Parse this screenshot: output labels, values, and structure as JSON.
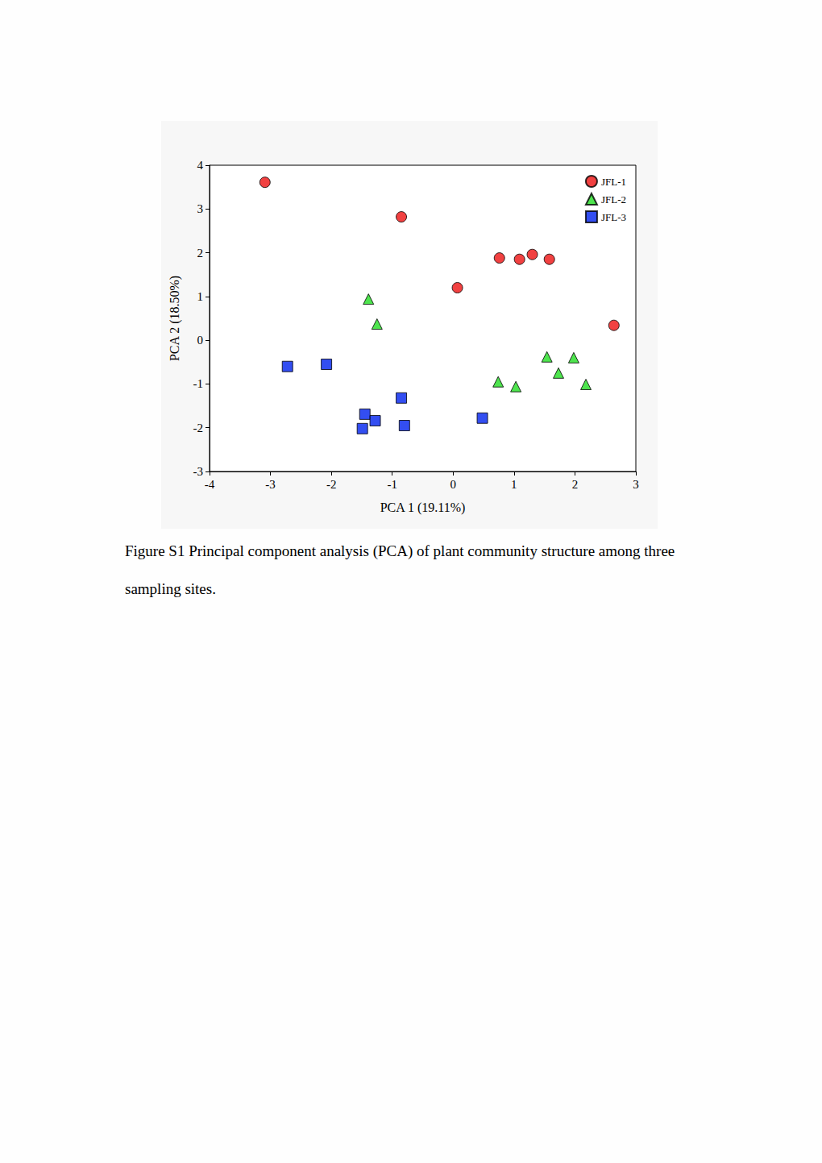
{
  "chart_data": {
    "type": "scatter",
    "xlabel": "PCA 1 (19.11%)",
    "ylabel": "PCA 2 (18.50%)",
    "caption": "Figure S1 Principal component analysis (PCA) of plant community structure among three sampling sites.",
    "xlim": [
      -4,
      3
    ],
    "xticks": [
      -4,
      -3,
      -2,
      -1,
      0,
      1,
      2,
      3
    ],
    "ylim": [
      -3,
      4
    ],
    "yticks": [
      -3,
      -2,
      -1,
      0,
      1,
      2,
      3,
      4
    ],
    "grid": false,
    "legend": "upper right",
    "series": [
      {
        "name": "JFL-1",
        "color": "#ee1111",
        "marker": "circle",
        "x": [
          -3.09,
          -0.85,
          0.76,
          1.09,
          1.3,
          1.58,
          0.07,
          2.64
        ],
        "y": [
          3.61,
          2.82,
          1.88,
          1.85,
          1.96,
          1.85,
          1.2,
          0.34
        ]
      },
      {
        "name": "JFL-2",
        "color": "#22dd22",
        "marker": "triangle",
        "x": [
          -1.39,
          -1.25,
          1.54,
          1.98,
          0.74,
          1.03,
          1.73,
          2.18
        ],
        "y": [
          0.94,
          0.37,
          -0.38,
          -0.4,
          -0.95,
          -1.06,
          -0.75,
          -1.01
        ]
      },
      {
        "name": "JFL-3",
        "color": "#0022ee",
        "marker": "rect",
        "x": [
          -2.72,
          -2.08,
          -1.45,
          -1.28,
          -1.49,
          -0.85,
          -0.8,
          0.48
        ],
        "y": [
          -0.6,
          -0.55,
          -1.69,
          -1.84,
          -2.02,
          -1.32,
          -1.95,
          -1.78
        ]
      }
    ]
  }
}
